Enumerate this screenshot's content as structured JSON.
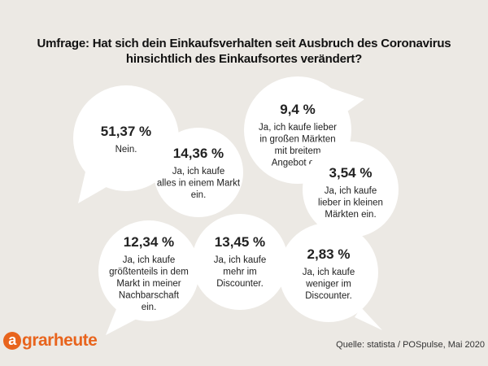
{
  "title_lines": [
    "Umfrage: Hat sich dein Einkaufsverhalten seit Ausbruch des Coronavirus",
    "hinsichtlich des Einkaufsortes verändert?"
  ],
  "chart_data": {
    "type": "pie",
    "title": "Umfrage: Hat sich dein Einkaufsverhalten seit Ausbruch des Coronavirus hinsichtlich des Einkaufsortes verändert?",
    "unit": "%",
    "items": [
      {
        "value": 51.37,
        "value_label": "51,37 %",
        "label_lines": [
          "Nein."
        ]
      },
      {
        "value": 14.36,
        "value_label": "14,36 %",
        "label_lines": [
          "Ja, ich kaufe",
          "alles in einem Markt",
          "ein."
        ]
      },
      {
        "value": 9.4,
        "value_label": "9,4 %",
        "label_lines": [
          "Ja, ich kaufe lieber",
          "in großen Märkten",
          "mit breitem",
          "Angebot ein."
        ]
      },
      {
        "value": 3.54,
        "value_label": "3,54 %",
        "label_lines": [
          "Ja, ich kaufe",
          "lieber in kleinen",
          "Märkten ein."
        ]
      },
      {
        "value": 12.34,
        "value_label": "12,34 %",
        "label_lines": [
          "Ja, ich kaufe",
          "größtenteils in dem",
          "Markt in meiner",
          "Nachbarschaft",
          "ein."
        ]
      },
      {
        "value": 13.45,
        "value_label": "13,45 %",
        "label_lines": [
          "Ja, ich kaufe",
          "mehr im",
          "Discounter."
        ]
      },
      {
        "value": 2.83,
        "value_label": "2,83 %",
        "label_lines": [
          "Ja, ich kaufe",
          "weniger im",
          "Discounter."
        ]
      }
    ]
  },
  "brand": {
    "mark": "a",
    "rest": "grarheute",
    "color": "#e8641d"
  },
  "source": "Quelle: statista / POSpulse, Mai 2020",
  "colors": {
    "background": "#ece9e4",
    "bubble": "#ffffff"
  }
}
